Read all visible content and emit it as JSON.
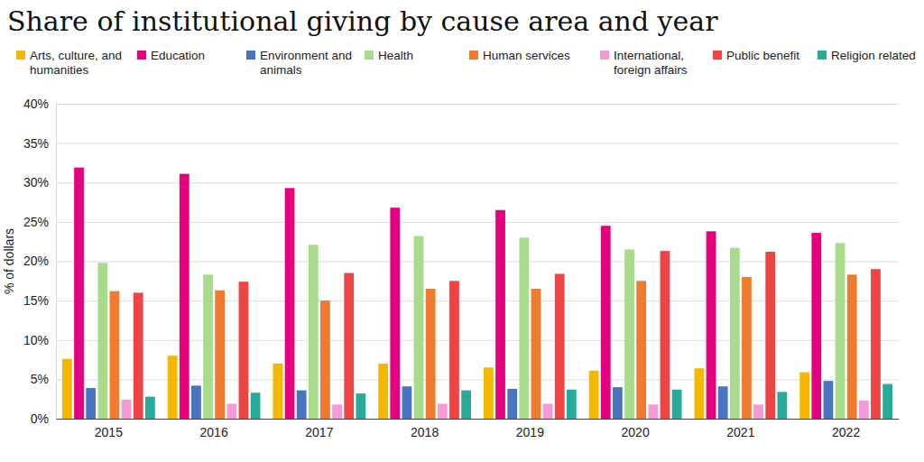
{
  "chart_data": {
    "type": "bar",
    "title": "Share of institutional giving by cause area and year",
    "y_label": "% of dollars",
    "categories": [
      "2015",
      "2016",
      "2017",
      "2018",
      "2019",
      "2020",
      "2021",
      "2022"
    ],
    "series": [
      {
        "name": "Arts, culture, and humanities",
        "color": "#f5b800",
        "values": [
          7.6,
          8.0,
          7.0,
          7.0,
          6.5,
          6.1,
          6.4,
          5.9
        ]
      },
      {
        "name": "Education",
        "color": "#e5007d",
        "values": [
          31.9,
          31.1,
          29.3,
          26.8,
          26.5,
          24.5,
          23.8,
          23.6
        ]
      },
      {
        "name": "Environment and animals",
        "color": "#4a73c0",
        "values": [
          3.9,
          4.2,
          3.6,
          4.1,
          3.8,
          4.0,
          4.1,
          4.8
        ]
      },
      {
        "name": "Health",
        "color": "#a8dc8c",
        "values": [
          19.8,
          18.3,
          22.1,
          23.2,
          23.0,
          21.5,
          21.7,
          22.3
        ]
      },
      {
        "name": "Human services",
        "color": "#f07a2e",
        "values": [
          16.2,
          16.3,
          15.0,
          16.5,
          16.5,
          17.5,
          18.0,
          18.3
        ]
      },
      {
        "name": "International, foreign affairs",
        "color": "#f49ad6",
        "values": [
          2.4,
          1.9,
          1.8,
          1.9,
          1.9,
          1.8,
          1.8,
          2.3
        ]
      },
      {
        "name": "Public benefit",
        "color": "#ee4444",
        "values": [
          16.0,
          17.4,
          18.5,
          17.5,
          18.4,
          21.3,
          21.2,
          19.0
        ]
      },
      {
        "name": "Religion related",
        "color": "#2aaa99",
        "values": [
          2.8,
          3.3,
          3.2,
          3.6,
          3.7,
          3.7,
          3.4,
          4.4
        ]
      }
    ],
    "ylim": [
      0,
      40
    ],
    "yticks": [
      {
        "value": 0,
        "label": "0%"
      },
      {
        "value": 5,
        "label": "5%"
      },
      {
        "value": 10,
        "label": "10%"
      },
      {
        "value": 15,
        "label": "15%"
      },
      {
        "value": 20,
        "label": "20%"
      },
      {
        "value": 25,
        "label": "25%"
      },
      {
        "value": 30,
        "label": "30%"
      },
      {
        "value": 35,
        "label": "35%"
      },
      {
        "value": 40,
        "label": "40%"
      }
    ],
    "grid": true,
    "legend": "top"
  }
}
